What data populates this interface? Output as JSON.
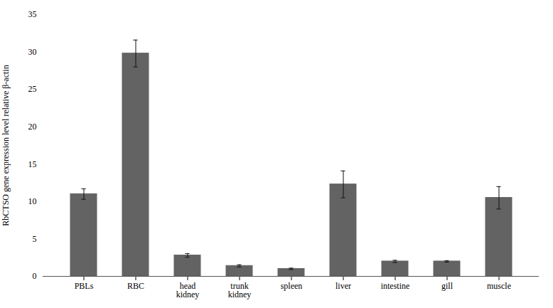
{
  "chart_data": {
    "type": "bar",
    "categories": [
      "PBLs",
      "RBC",
      "head\nkidney",
      "trunk\nkidney",
      "spleen",
      "liver",
      "intestine",
      "gill",
      "muscle"
    ],
    "values": [
      11.0,
      29.8,
      2.8,
      1.4,
      1.0,
      12.3,
      2.0,
      2.0,
      10.5
    ],
    "error_bars": {
      "values": [
        0.7,
        1.8,
        0.25,
        0.15,
        0.1,
        1.8,
        0.15,
        0.1,
        1.5
      ],
      "color": "#111111"
    },
    "color": "#636363",
    "ylabel": "RbCTSO gene expression level relative β-actin",
    "ylim": [
      0,
      35
    ],
    "yticks": [
      0,
      5,
      10,
      15,
      20,
      25,
      30,
      35
    ],
    "grid": false
  }
}
